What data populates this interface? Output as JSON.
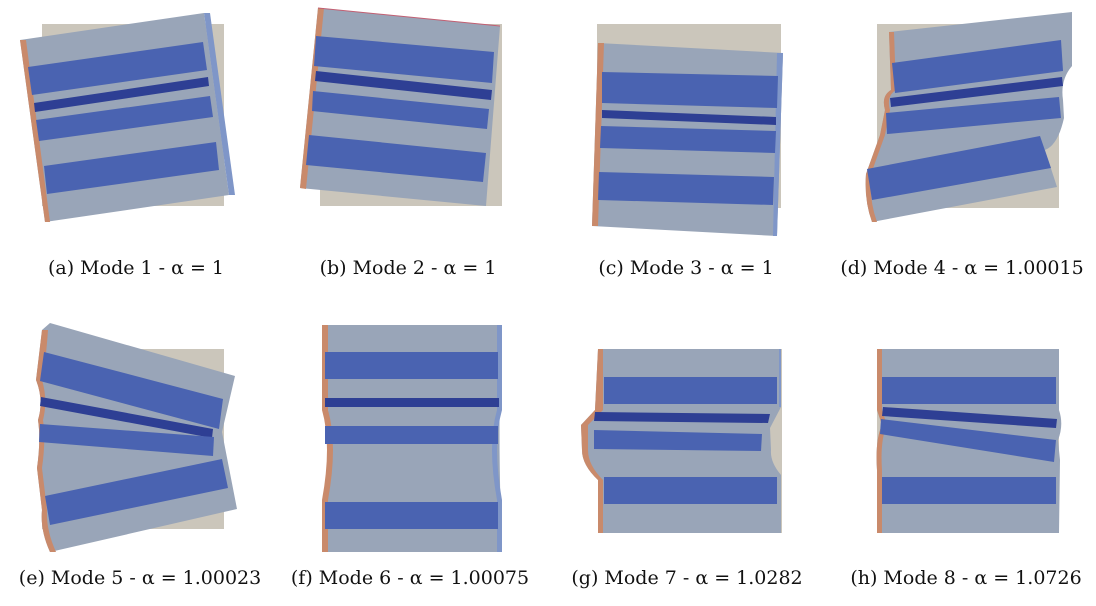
{
  "panels": [
    {
      "id": "a",
      "caption": "(a) Mode 1 - α = 1"
    },
    {
      "id": "b",
      "caption": "(b) Mode 2 - α = 1"
    },
    {
      "id": "c",
      "caption": "(c) Mode 3 - α = 1"
    },
    {
      "id": "d",
      "caption": "(d) Mode 4 - α = 1.00015"
    },
    {
      "id": "e",
      "caption": "(e) Mode 5 - α = 1.00023"
    },
    {
      "id": "f",
      "caption": "(f) Mode 6 - α = 1.00075"
    },
    {
      "id": "g",
      "caption": "(g) Mode 7 - α = 1.0282"
    },
    {
      "id": "h",
      "caption": "(h) Mode 8 - α = 1.0726"
    }
  ],
  "colors": {
    "reference": "#cbc6bb",
    "matrix": "#99a5b8",
    "layer": "#4a63b1",
    "thin_layer": "#2e3f94",
    "left_edge": "#c98a6b",
    "right_edge": "#7f96c8",
    "outline": "#c25f72"
  }
}
